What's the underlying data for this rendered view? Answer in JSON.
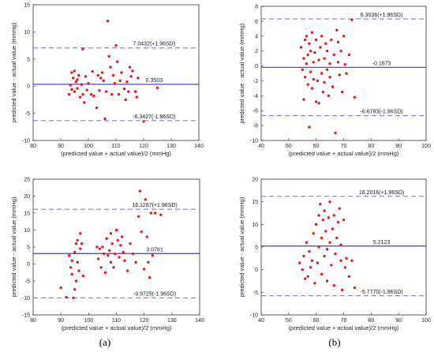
{
  "captions": [
    "(a)",
    "(b)"
  ],
  "chart_data": [
    {
      "type": "scatter",
      "xlabel": "(predicted value + actual value)/2 (mmHg)",
      "ylabel": "predicted value - actual value (mmHg)",
      "xlim": [
        80,
        140
      ],
      "ylim": [
        -10,
        15
      ],
      "xticks": [
        80,
        90,
        100,
        110,
        120,
        130,
        140
      ],
      "yticks": [
        -10,
        -5,
        0,
        5,
        10,
        15
      ],
      "mean": 0.3503,
      "upper": 7.0432,
      "lower": -6.3427,
      "mean_label": "0.3503",
      "upper_label": "7.0432(+1.96SD)",
      "lower_label": "-6.3427(-1.96SD)",
      "points": [
        [
          93,
          -1.5
        ],
        [
          93.5,
          0.2
        ],
        [
          94,
          2.5
        ],
        [
          94,
          -0.6
        ],
        [
          94.5,
          1.5
        ],
        [
          95,
          -1
        ],
        [
          95,
          2.8
        ],
        [
          95.5,
          0.8
        ],
        [
          96,
          -0.4
        ],
        [
          96,
          1.2
        ],
        [
          96.5,
          2
        ],
        [
          97,
          -2
        ],
        [
          97.5,
          0.3
        ],
        [
          98,
          -1.5
        ],
        [
          98,
          6.8
        ],
        [
          98.5,
          -3
        ],
        [
          99,
          1.8
        ],
        [
          99.5,
          -0.7
        ],
        [
          100,
          0.5
        ],
        [
          101,
          -1.5
        ],
        [
          101.5,
          2.7
        ],
        [
          102,
          -1.8
        ],
        [
          103,
          -4
        ],
        [
          103.5,
          2
        ],
        [
          104,
          -0.8
        ],
        [
          104.5,
          1.5
        ],
        [
          105,
          2.5
        ],
        [
          105.5,
          1
        ],
        [
          106,
          -6
        ],
        [
          106.5,
          -1
        ],
        [
          107,
          12
        ],
        [
          107.5,
          5.5
        ],
        [
          108,
          3.5
        ],
        [
          108.5,
          -1.5
        ],
        [
          109,
          2
        ],
        [
          109.5,
          0.5
        ],
        [
          110,
          7.5
        ],
        [
          110.5,
          4.5
        ],
        [
          111,
          -1.5
        ],
        [
          111.5,
          1
        ],
        [
          112,
          2.5
        ],
        [
          113,
          -0.5
        ],
        [
          113.5,
          -2.5
        ],
        [
          114,
          0.8
        ],
        [
          114.5,
          -1
        ],
        [
          115,
          3.5
        ],
        [
          115.5,
          1.8
        ],
        [
          116,
          2.8
        ],
        [
          117,
          -1
        ],
        [
          117.5,
          -2
        ],
        [
          118,
          1.5
        ],
        [
          120,
          -6.5
        ],
        [
          125,
          -0.3
        ]
      ]
    },
    {
      "type": "scatter",
      "xlabel": "(predicted value + actual value)/2 (mmHg)",
      "ylabel": "predicted value - actual value (mmHg)",
      "xlim": [
        40,
        100
      ],
      "ylim": [
        -10,
        8
      ],
      "xticks": [
        40,
        50,
        60,
        70,
        80,
        90,
        100
      ],
      "yticks": [
        -10,
        -8,
        -6,
        -4,
        -2,
        0,
        2,
        4,
        6,
        8
      ],
      "mean": -0.1873,
      "upper": 6.3036,
      "lower": -6.6783,
      "mean_label": "-0.1873",
      "upper_label": "6.3036(+1.96SD)",
      "lower_label": "-6.6783(-1.96SD)",
      "points": [
        [
          54.5,
          2.5
        ],
        [
          55,
          -0.5
        ],
        [
          55.5,
          1
        ],
        [
          55.5,
          -4.5
        ],
        [
          56,
          3.5
        ],
        [
          56,
          -1.5
        ],
        [
          56.5,
          0.3
        ],
        [
          56.5,
          4
        ],
        [
          57,
          -2.5
        ],
        [
          57,
          1.5
        ],
        [
          57.5,
          -8.2
        ],
        [
          57.5,
          3
        ],
        [
          58,
          -0.8
        ],
        [
          58,
          2
        ],
        [
          58.5,
          -3
        ],
        [
          58.5,
          4.5
        ],
        [
          59,
          0.5
        ],
        [
          59,
          -1.8
        ],
        [
          59.5,
          1.8
        ],
        [
          60,
          -4.8
        ],
        [
          60,
          3.5
        ],
        [
          60.5,
          -2
        ],
        [
          61,
          0.8
        ],
        [
          61,
          -5
        ],
        [
          61.5,
          2.5
        ],
        [
          62,
          -1
        ],
        [
          62,
          4
        ],
        [
          62.5,
          -3.5
        ],
        [
          63,
          1
        ],
        [
          63,
          -2.2
        ],
        [
          63.5,
          3
        ],
        [
          64,
          -0.5
        ],
        [
          64,
          2
        ],
        [
          64.5,
          -4
        ],
        [
          65,
          0.3
        ],
        [
          65,
          -1.5
        ],
        [
          65.5,
          3.5
        ],
        [
          66,
          -2.8
        ],
        [
          66.5,
          1.5
        ],
        [
          67,
          -9
        ],
        [
          67.5,
          4.8
        ],
        [
          68,
          0.5
        ],
        [
          68,
          3.2
        ],
        [
          68.5,
          -1.2
        ],
        [
          69,
          2
        ],
        [
          69.5,
          -3.5
        ],
        [
          70,
          4
        ],
        [
          70.5,
          0.2
        ],
        [
          71,
          -1
        ],
        [
          72,
          1.5
        ],
        [
          73,
          6.2
        ],
        [
          74,
          -4.2
        ]
      ]
    },
    {
      "type": "scatter",
      "xlabel": "(predicted value + actual value)/2 (mmHg)",
      "ylabel": "predicted value - actual value (mmHg)",
      "xlim": [
        80,
        140
      ],
      "ylim": [
        -15,
        25
      ],
      "xticks": [
        80,
        90,
        100,
        110,
        120,
        130,
        140
      ],
      "yticks": [
        -15,
        -10,
        -5,
        0,
        5,
        10,
        15,
        20,
        25
      ],
      "mean": 3.0781,
      "upper": 16.1287,
      "lower": -9.9725,
      "mean_label": "3.0781",
      "upper_label": "16.1287(+1.96SD)",
      "lower_label": "-9.9725(-1.96SD)",
      "points": [
        [
          90,
          -7
        ],
        [
          92,
          -9.8
        ],
        [
          93,
          2.5
        ],
        [
          93.5,
          -1
        ],
        [
          94,
          -3
        ],
        [
          94,
          1
        ],
        [
          94.5,
          -10
        ],
        [
          95,
          -7.5
        ],
        [
          95,
          3.5
        ],
        [
          95.5,
          -5
        ],
        [
          95.5,
          6
        ],
        [
          96,
          0.5
        ],
        [
          96,
          7
        ],
        [
          96.5,
          -2
        ],
        [
          97,
          9
        ],
        [
          97,
          4.5
        ],
        [
          97.5,
          6
        ],
        [
          98,
          -3.5
        ],
        [
          103,
          5
        ],
        [
          103.5,
          1.5
        ],
        [
          104,
          4.5
        ],
        [
          104.5,
          -1
        ],
        [
          105,
          5
        ],
        [
          105.5,
          3
        ],
        [
          106,
          -2.5
        ],
        [
          106.5,
          7.5
        ],
        [
          107,
          2.5
        ],
        [
          107.5,
          4
        ],
        [
          108,
          0.5
        ],
        [
          108,
          9
        ],
        [
          108.5,
          6
        ],
        [
          109,
          -1
        ],
        [
          109.5,
          3
        ],
        [
          110,
          10
        ],
        [
          110.5,
          7
        ],
        [
          111,
          2
        ],
        [
          111.5,
          5.5
        ],
        [
          112,
          8
        ],
        [
          112.5,
          3.5
        ],
        [
          113,
          1
        ],
        [
          114,
          -2
        ],
        [
          115,
          6
        ],
        [
          116,
          3
        ],
        [
          117,
          0.5
        ],
        [
          118,
          14
        ],
        [
          118.5,
          21.5
        ],
        [
          119,
          9.5
        ],
        [
          120,
          -1.5
        ],
        [
          120.5,
          19
        ],
        [
          121,
          8
        ],
        [
          121.5,
          0.5
        ],
        [
          122,
          -4
        ],
        [
          122.5,
          15
        ],
        [
          123,
          2.5
        ],
        [
          124,
          15
        ],
        [
          126,
          14.5
        ]
      ]
    },
    {
      "type": "scatter",
      "xlabel": "(predicted value + actual value)/2 (mmHg)",
      "ylabel": "predicted value - actual value (mmHg)",
      "xlim": [
        40,
        100
      ],
      "ylim": [
        -10,
        20
      ],
      "xticks": [
        40,
        50,
        60,
        70,
        80,
        90,
        100
      ],
      "yticks": [
        -10,
        -5,
        0,
        5,
        10,
        15,
        20
      ],
      "mean": 5.2123,
      "upper": 16.2016,
      "lower": -5.777,
      "mean_label": "5.2123",
      "upper_label": "16.2016(+1.96SD)",
      "lower_label": "-5.7770(-1.96SD)",
      "points": [
        [
          54,
          1.5
        ],
        [
          55,
          0
        ],
        [
          55.5,
          3
        ],
        [
          56,
          -2
        ],
        [
          56.5,
          6
        ],
        [
          57,
          -1.5
        ],
        [
          57.5,
          4
        ],
        [
          58,
          0.5
        ],
        [
          58.5,
          2
        ],
        [
          59,
          8
        ],
        [
          59.5,
          -3
        ],
        [
          60,
          10
        ],
        [
          60.5,
          1.5
        ],
        [
          61,
          12
        ],
        [
          61,
          5
        ],
        [
          61.5,
          14.5
        ],
        [
          62,
          -1
        ],
        [
          62,
          7
        ],
        [
          62.5,
          11
        ],
        [
          63,
          3
        ],
        [
          63,
          13
        ],
        [
          63.5,
          8.5
        ],
        [
          64,
          -2.5
        ],
        [
          64,
          4.5
        ],
        [
          64.5,
          11.5
        ],
        [
          65,
          6
        ],
        [
          65,
          15
        ],
        [
          65.5,
          1
        ],
        [
          66,
          9
        ],
        [
          66.5,
          -3.5
        ],
        [
          66.5,
          12
        ],
        [
          67,
          3.5
        ],
        [
          67.5,
          7
        ],
        [
          68,
          10.5
        ],
        [
          68.5,
          13.5
        ],
        [
          69,
          2
        ],
        [
          69,
          5.5
        ],
        [
          69.5,
          -4.5
        ],
        [
          70,
          11
        ],
        [
          70.5,
          0.5
        ],
        [
          71,
          2.5
        ],
        [
          72,
          -1.5
        ],
        [
          73,
          2
        ],
        [
          74,
          -4
        ]
      ]
    }
  ]
}
